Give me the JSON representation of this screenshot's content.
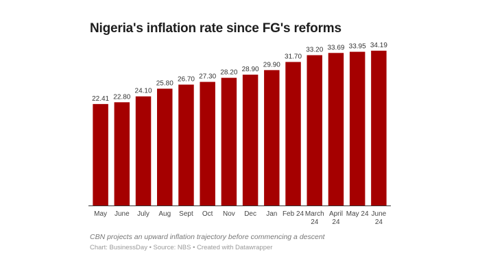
{
  "chart_data": {
    "type": "bar",
    "title": "Nigeria's inflation rate since FG's reforms",
    "categories": [
      "May",
      "June",
      "July",
      "Aug",
      "Sept",
      "Oct",
      "Nov",
      "Dec",
      "Jan",
      "Feb 24",
      "March 24",
      "April 24",
      "May 24",
      "June 24"
    ],
    "values": [
      22.41,
      22.8,
      24.1,
      25.8,
      26.7,
      27.3,
      28.2,
      28.9,
      29.9,
      31.7,
      33.2,
      33.69,
      33.95,
      34.19
    ],
    "labels": [
      "22.41",
      "22.80",
      "24.10",
      "25.80",
      "26.70",
      "27.30",
      "28.20",
      "28.90",
      "29.90",
      "31.70",
      "33.20",
      "33.69",
      "33.95",
      "34.19"
    ],
    "xlabel": "",
    "ylabel": "",
    "ylim": [
      0,
      34.19
    ],
    "grid": false,
    "bar_color": "#a50000"
  },
  "notes": "CBN projects an upward inflation trajectory before commencing a descent",
  "source": "Chart: BusinessDay • Source: NBS • Created with Datawrapper"
}
